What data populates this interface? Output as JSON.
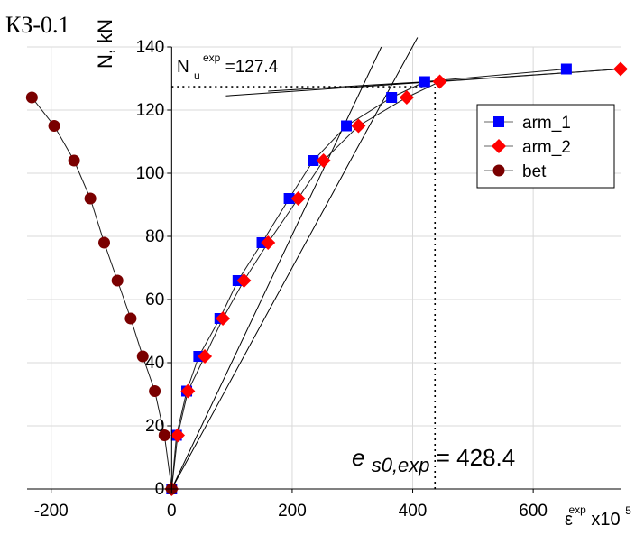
{
  "chart_data": {
    "type": "line",
    "panel_label": "КЗ-0.1",
    "ylabel": "N, kN",
    "xlabel": {
      "base": "ε",
      "sup": "exp",
      "suffix": "x10",
      "suffix_sup": "5"
    },
    "xlim": [
      -240,
      745
    ],
    "ylim": [
      0,
      140
    ],
    "xticks": [
      -200,
      0,
      200,
      400,
      600
    ],
    "yticks": [
      0,
      20,
      40,
      60,
      80,
      100,
      120,
      140
    ],
    "grid": true,
    "legend_position": "top-right",
    "series": [
      {
        "name": "arm_1",
        "color": "#0000ff",
        "marker": "square",
        "line_color": "#1a1a1a",
        "x": [
          0,
          8,
          25,
          45,
          80,
          110,
          150,
          195,
          235,
          290,
          365,
          420,
          655
        ],
        "y": [
          0,
          17,
          31,
          42,
          54,
          66,
          78,
          92,
          104,
          115,
          124,
          129,
          133
        ]
      },
      {
        "name": "arm_2",
        "color": "#ff0000",
        "marker": "diamond",
        "line_color": "#1a1a1a",
        "x": [
          0,
          10,
          27,
          55,
          85,
          120,
          160,
          210,
          252,
          310,
          390,
          445,
          745
        ],
        "y": [
          0,
          17,
          31,
          42,
          54,
          66,
          78,
          92,
          104,
          115,
          124,
          129,
          133
        ]
      },
      {
        "name": "bet",
        "color": "#7a0000",
        "marker": "circle",
        "line_color": "#1a1a1a",
        "x": [
          0,
          -12,
          -28,
          -48,
          -68,
          -90,
          -112,
          -135,
          -162,
          -195,
          -232
        ],
        "y": [
          0,
          17,
          31,
          42,
          54,
          66,
          78,
          92,
          104,
          115,
          124
        ]
      }
    ],
    "tangent_lines": [
      {
        "x": [
          0,
          348
        ],
        "y": [
          0,
          140
        ]
      },
      {
        "x": [
          0,
          408
        ],
        "y": [
          0,
          143
        ]
      },
      {
        "x": [
          90,
          745
        ],
        "y": [
          124.5,
          133
        ]
      },
      {
        "x": [
          160,
          450
        ],
        "y": [
          126,
          129.3
        ]
      }
    ],
    "reference_lines": [
      {
        "orientation": "horizontal",
        "value": 127.4,
        "from": 0,
        "to": 430
      },
      {
        "orientation": "vertical",
        "value": 437,
        "from": 0,
        "to": 127.4
      }
    ],
    "annotations": {
      "nu": {
        "base": "N",
        "sub": "u",
        "sup": "exp",
        "text": "=127.4"
      },
      "es0": {
        "base": "e",
        "sub": "s0,exp",
        "text": "= 428.4"
      }
    }
  }
}
